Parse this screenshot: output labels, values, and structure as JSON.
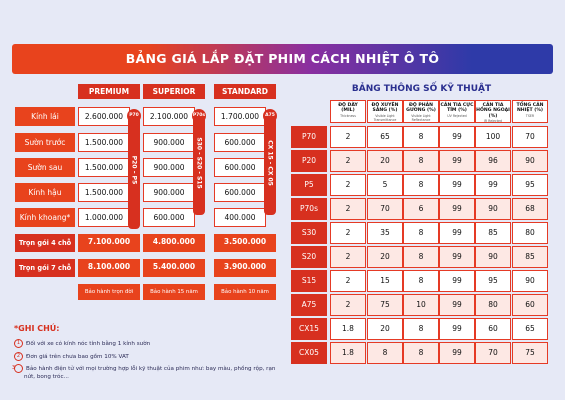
{
  "title": "BẢNG GIÁ LẮP ĐẶT PHIM CÁCH NHIỆT Ô TÔ",
  "price_table": {
    "packages": [
      "PREMIUM",
      "SUPERIOR",
      "STANDARD"
    ],
    "stripes": [
      "P20 – P5",
      "S30 - S20 - S15",
      "CX 15 - CX 05"
    ],
    "badges": [
      "P70",
      "P70s",
      "A75"
    ],
    "rows": [
      {
        "label": "Kính lái",
        "values": [
          "2.600.000",
          "2.100.000",
          "1.700.000"
        ]
      },
      {
        "label": "Sườn trước",
        "values": [
          "1.500.000",
          "900.000",
          "600.000"
        ]
      },
      {
        "label": "Sườn sau",
        "values": [
          "1.500.000",
          "900.000",
          "600.000"
        ]
      },
      {
        "label": "Kính hậu",
        "values": [
          "1.500.000",
          "900.000",
          "600.000"
        ]
      },
      {
        "label": "Kính khoang*",
        "values": [
          "1.000.000",
          "600.000",
          "400.000"
        ]
      },
      {
        "label": "Trọn gói 4 chỗ",
        "values": [
          "7.100.000",
          "4.800.000",
          "3.500.000"
        ]
      },
      {
        "label": "Trọn gói 7 chỗ",
        "values": [
          "8.100.000",
          "5.400.000",
          "3.900.000"
        ]
      }
    ],
    "warranty": [
      "Bảo hành trọn đời",
      "Bảo hành 15 năm",
      "Bảo hành 10 năm"
    ]
  },
  "spec_table": {
    "title": "BẢNG THÔNG SỐ KỸ THUẬT",
    "columns": [
      {
        "name": "ĐỘ DÀY (MIL)",
        "sub": "Thickness"
      },
      {
        "name": "ĐỘ XUYÊN SÁNG (%)",
        "sub": "Visible Light Transmittance"
      },
      {
        "name": "ĐỘ PHẢN GƯƠNG (%)",
        "sub": "Visible Light Reflectance"
      },
      {
        "name": "CẢN TIA CỰC TÍM (%)",
        "sub": "UV Rejected"
      },
      {
        "name": "CẢN TIA HỒNG NGOẠI (%)",
        "sub": "IR Rejected"
      },
      {
        "name": "TỔNG CẢN NHIỆT (%)",
        "sub": "TSER"
      }
    ],
    "rows": [
      {
        "film": "P70",
        "values": [
          "2",
          "65",
          "8",
          "99",
          "100",
          "70"
        ]
      },
      {
        "film": "P20",
        "values": [
          "2",
          "20",
          "8",
          "99",
          "96",
          "90"
        ]
      },
      {
        "film": "P5",
        "values": [
          "2",
          "5",
          "8",
          "99",
          "99",
          "95"
        ]
      },
      {
        "film": "P70s",
        "values": [
          "2",
          "70",
          "6",
          "99",
          "90",
          "68"
        ]
      },
      {
        "film": "S30",
        "values": [
          "2",
          "35",
          "8",
          "99",
          "85",
          "80"
        ]
      },
      {
        "film": "S20",
        "values": [
          "2",
          "20",
          "8",
          "99",
          "90",
          "85"
        ]
      },
      {
        "film": "S15",
        "values": [
          "2",
          "15",
          "8",
          "99",
          "95",
          "90"
        ]
      },
      {
        "film": "A75",
        "values": [
          "2",
          "75",
          "10",
          "99",
          "80",
          "60"
        ]
      },
      {
        "film": "CX15",
        "values": [
          "1.8",
          "20",
          "8",
          "99",
          "60",
          "65"
        ]
      },
      {
        "film": "CX05",
        "values": [
          "1.8",
          "8",
          "8",
          "99",
          "70",
          "75"
        ]
      }
    ]
  },
  "notes": {
    "title": "*GHI CHÚ:",
    "items": [
      "Đối với xe có kính nóc tính bằng 1 kính sườn",
      "Đơn giá trên chưa bao gồm 10% VAT",
      "Bảo hành điện tử với mọi trường hợp lỗi kỹ thuật của phim như: bay màu, phồng rộp, rạn nứt, bong tróc..."
    ],
    "numbers": [
      "1",
      "2",
      "3"
    ]
  }
}
